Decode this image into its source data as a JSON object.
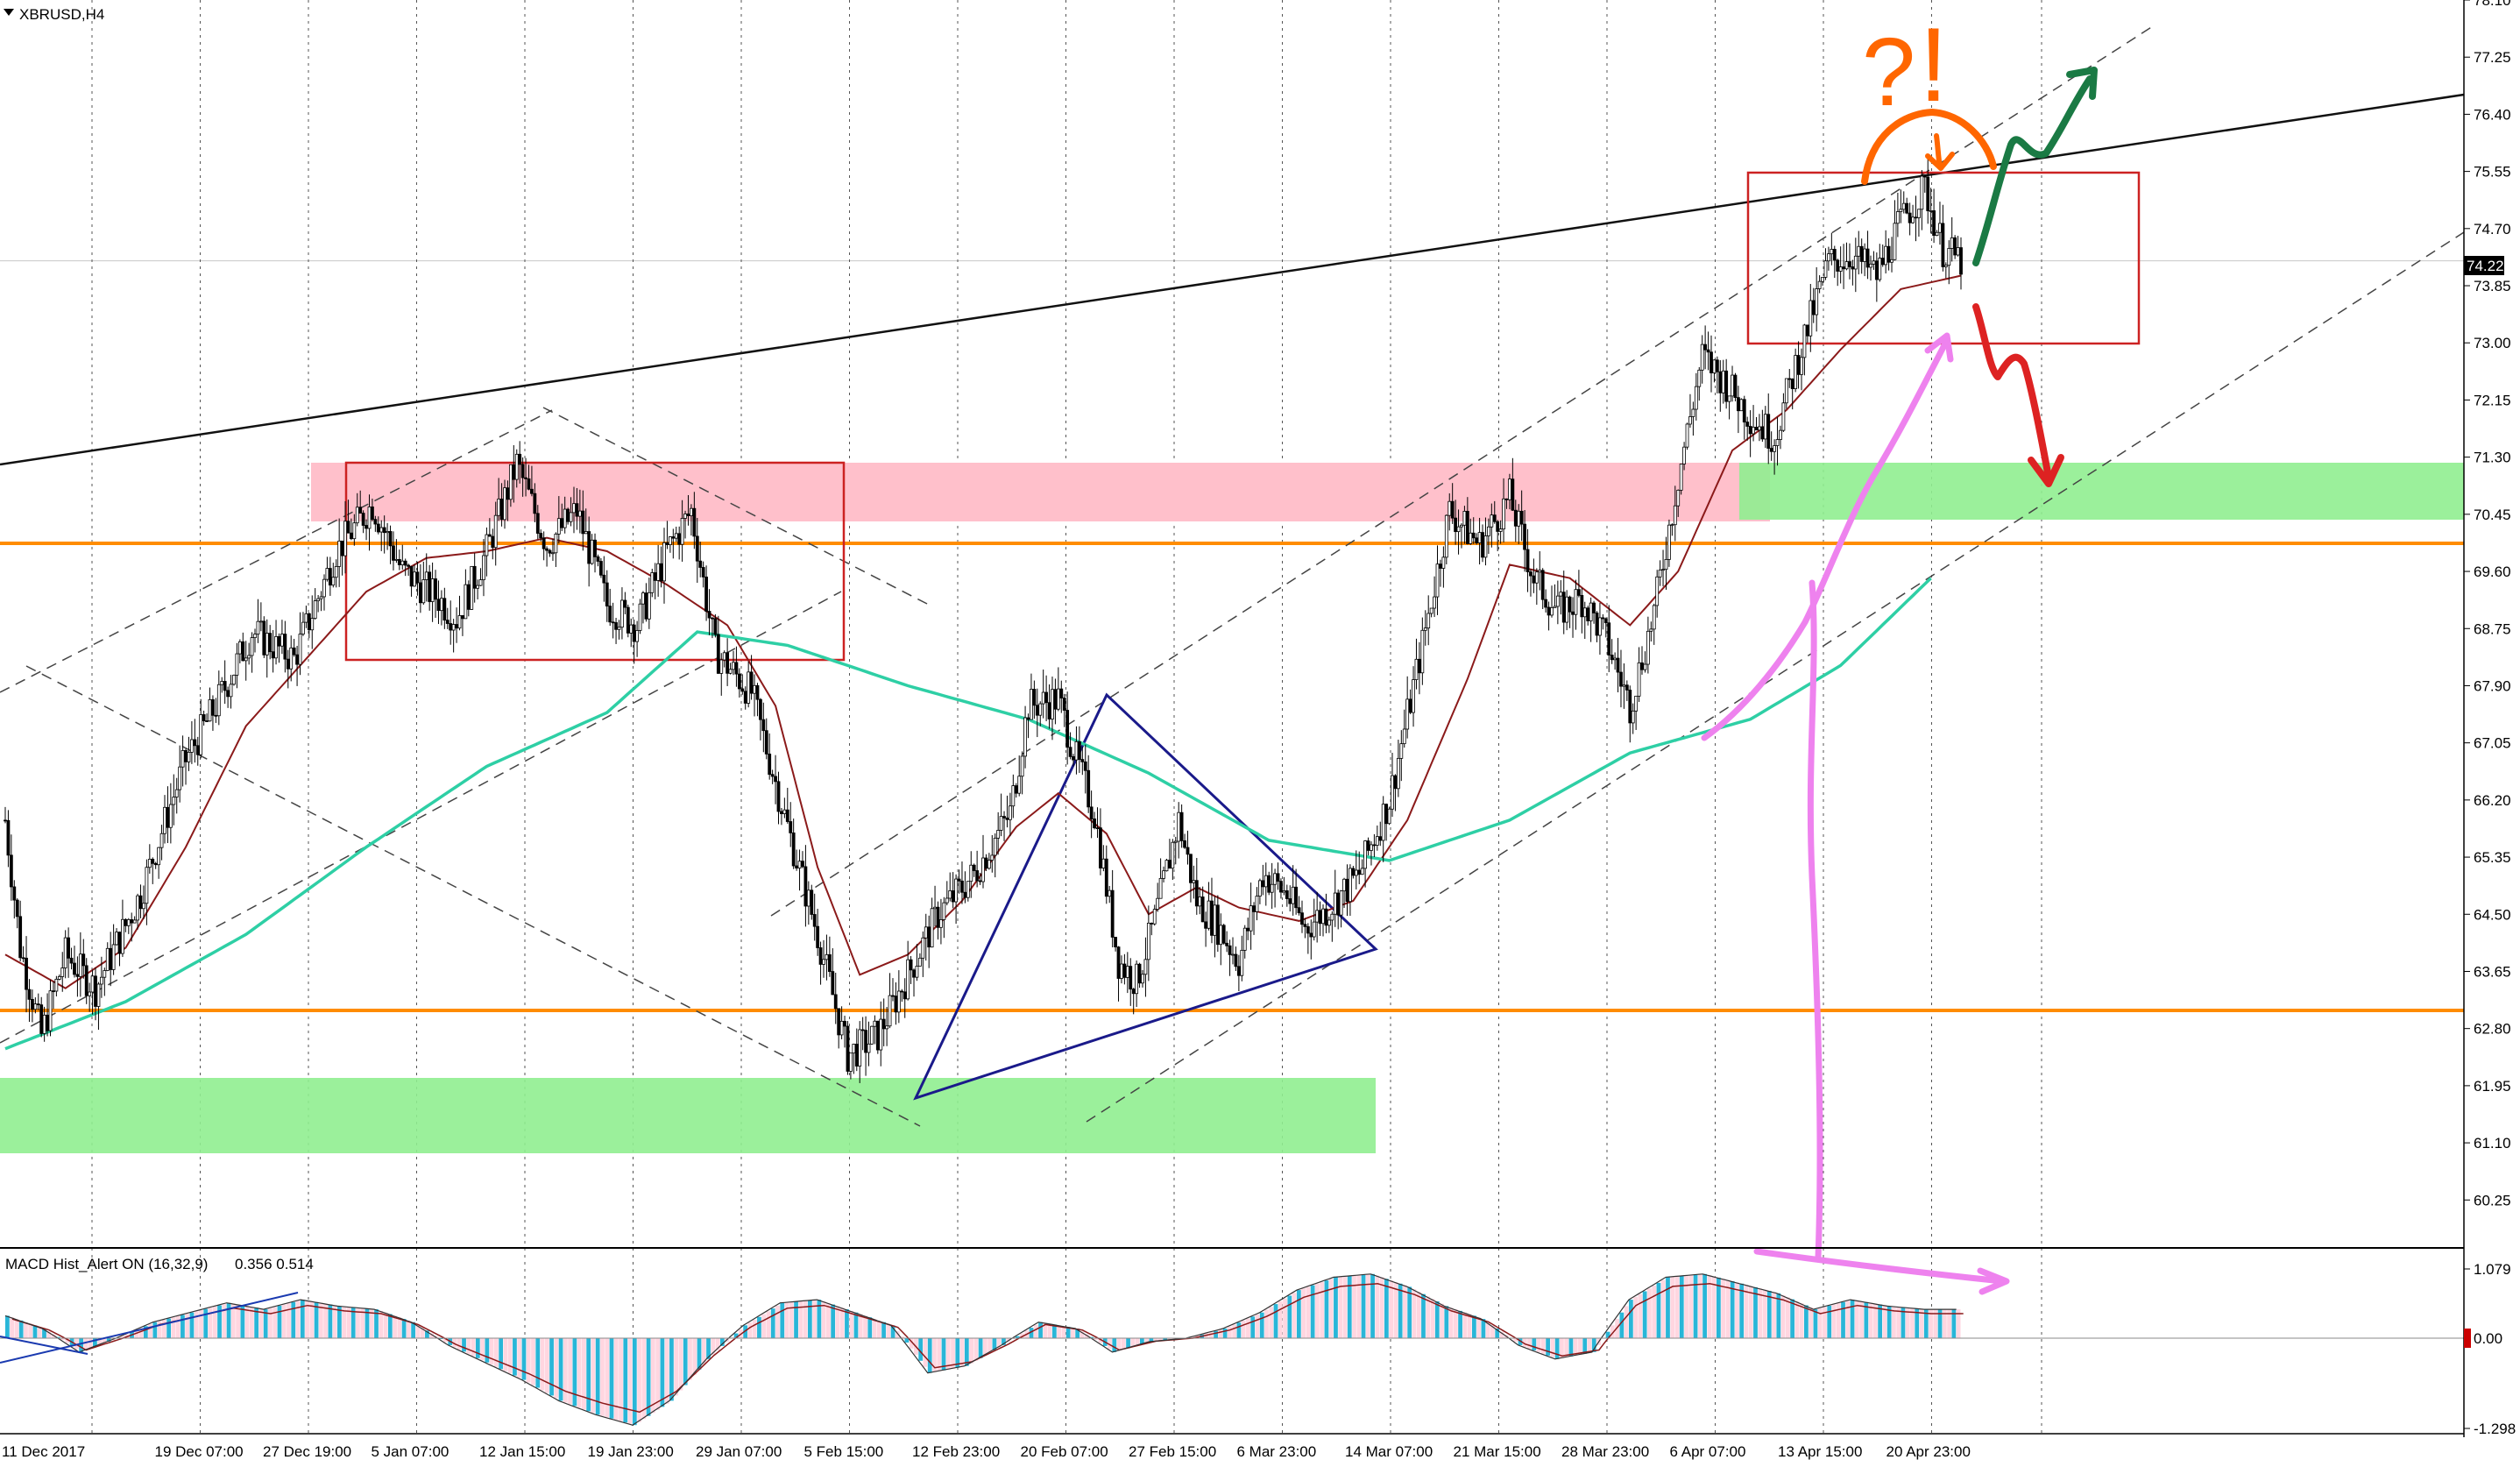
{
  "chart_data": [
    {
      "type": "candlestick",
      "symbol_label": "XBRUSD,H4",
      "current_price": "74.22",
      "ylim": [
        59.55,
        78.1
      ],
      "y_ticks": [
        "78.10",
        "77.25",
        "76.40",
        "75.55",
        "74.70",
        "73.85",
        "73.00",
        "72.15",
        "71.30",
        "70.45",
        "69.60",
        "68.75",
        "67.90",
        "67.05",
        "66.20",
        "65.35",
        "64.50",
        "63.65",
        "62.80",
        "61.95",
        "61.10",
        "60.25"
      ],
      "x_ticks": [
        "11 Dec 2017",
        "19 Dec 07:00",
        "27 Dec 19:00",
        "5 Jan 07:00",
        "12 Jan 15:00",
        "19 Jan 23:00",
        "29 Jan 07:00",
        "5 Feb 15:00",
        "12 Feb 23:00",
        "20 Feb 07:00",
        "27 Feb 15:00",
        "6 Mar 23:00",
        "14 Mar 07:00",
        "21 Mar 15:00",
        "28 Mar 23:00",
        "6 Apr 07:00",
        "13 Apr 15:00",
        "20 Apr 23:00"
      ],
      "price_path": [
        [
          0,
          65.9
        ],
        [
          5,
          64.0
        ],
        [
          12,
          62.7
        ],
        [
          20,
          63.9
        ],
        [
          30,
          63.4
        ],
        [
          45,
          64.8
        ],
        [
          60,
          66.8
        ],
        [
          70,
          67.6
        ],
        [
          82,
          68.7
        ],
        [
          96,
          68.3
        ],
        [
          110,
          69.9
        ],
        [
          122,
          70.6
        ],
        [
          132,
          69.6
        ],
        [
          144,
          69.2
        ],
        [
          150,
          68.9
        ],
        [
          160,
          69.9
        ],
        [
          170,
          71.2
        ],
        [
          180,
          70.0
        ],
        [
          190,
          70.5
        ],
        [
          200,
          69.1
        ],
        [
          210,
          68.8
        ],
        [
          220,
          69.9
        ],
        [
          228,
          70.5
        ],
        [
          236,
          68.4
        ],
        [
          248,
          67.8
        ],
        [
          260,
          65.8
        ],
        [
          270,
          64.2
        ],
        [
          280,
          62.4
        ],
        [
          290,
          62.7
        ],
        [
          300,
          63.6
        ],
        [
          310,
          64.5
        ],
        [
          322,
          65.1
        ],
        [
          334,
          66.0
        ],
        [
          340,
          67.6
        ],
        [
          350,
          67.7
        ],
        [
          356,
          66.8
        ],
        [
          362,
          66.0
        ],
        [
          370,
          63.8
        ],
        [
          376,
          63.5
        ],
        [
          382,
          64.4
        ],
        [
          390,
          65.9
        ],
        [
          396,
          64.7
        ],
        [
          402,
          64.4
        ],
        [
          410,
          63.8
        ],
        [
          418,
          65.1
        ],
        [
          426,
          64.8
        ],
        [
          432,
          64.3
        ],
        [
          440,
          64.6
        ],
        [
          450,
          65.1
        ],
        [
          460,
          66.2
        ],
        [
          470,
          68.3
        ],
        [
          480,
          70.5
        ],
        [
          490,
          70.0
        ],
        [
          500,
          70.7
        ],
        [
          508,
          69.5
        ],
        [
          516,
          69.0
        ],
        [
          524,
          69.2
        ],
        [
          532,
          68.6
        ],
        [
          540,
          67.6
        ],
        [
          548,
          69.0
        ],
        [
          556,
          71.0
        ],
        [
          564,
          72.8
        ],
        [
          572,
          72.4
        ],
        [
          580,
          71.9
        ],
        [
          588,
          71.6
        ],
        [
          596,
          72.8
        ],
        [
          606,
          74.2
        ],
        [
          614,
          74.3
        ],
        [
          622,
          74.0
        ],
        [
          630,
          74.8
        ],
        [
          638,
          75.3
        ],
        [
          644,
          74.4
        ],
        [
          650,
          74.22
        ]
      ],
      "series": [
        {
          "color": "#8b1a1a",
          "values": [
            [
              0,
              63.9
            ],
            [
              20,
              63.4
            ],
            [
              40,
              64.0
            ],
            [
              60,
              65.5
            ],
            [
              80,
              67.3
            ],
            [
              100,
              68.3
            ],
            [
              120,
              69.3
            ],
            [
              140,
              69.8
            ],
            [
              160,
              69.9
            ],
            [
              180,
              70.1
            ],
            [
              200,
              69.9
            ],
            [
              220,
              69.4
            ],
            [
              240,
              68.8
            ],
            [
              256,
              67.6
            ],
            [
              270,
              65.2
            ],
            [
              284,
              63.6
            ],
            [
              300,
              63.9
            ],
            [
              318,
              64.7
            ],
            [
              336,
              65.8
            ],
            [
              350,
              66.3
            ],
            [
              366,
              65.7
            ],
            [
              380,
              64.5
            ],
            [
              396,
              64.9
            ],
            [
              410,
              64.6
            ],
            [
              430,
              64.4
            ],
            [
              448,
              64.7
            ],
            [
              466,
              65.9
            ],
            [
              486,
              68.0
            ],
            [
              500,
              69.7
            ],
            [
              520,
              69.5
            ],
            [
              540,
              68.8
            ],
            [
              556,
              69.6
            ],
            [
              574,
              71.4
            ],
            [
              592,
              72.0
            ],
            [
              610,
              72.9
            ],
            [
              630,
              73.8
            ],
            [
              650,
              74.0
            ]
          ]
        },
        {
          "color": "#2ecfa5",
          "values": [
            [
              0,
              62.5
            ],
            [
              40,
              63.2
            ],
            [
              80,
              64.2
            ],
            [
              120,
              65.5
            ],
            [
              160,
              66.7
            ],
            [
              200,
              67.5
            ],
            [
              230,
              68.7
            ],
            [
              260,
              68.5
            ],
            [
              300,
              67.9
            ],
            [
              340,
              67.4
            ],
            [
              380,
              66.6
            ],
            [
              420,
              65.6
            ],
            [
              460,
              65.3
            ],
            [
              500,
              65.9
            ],
            [
              540,
              66.9
            ],
            [
              580,
              67.4
            ],
            [
              610,
              68.2
            ],
            [
              640,
              69.5
            ]
          ]
        }
      ]
    },
    {
      "type": "bar",
      "title": "MACD Hist_Alert ON (16,32,9)",
      "readout": "0.356 0.514",
      "ylim": [
        -1.298,
        1.079
      ],
      "y_ticks": [
        "1.079",
        "0.00",
        "-1.298"
      ],
      "zero_label": "0.00",
      "values": [
        0.35,
        0.15,
        -0.2,
        0.0,
        0.25,
        0.4,
        0.55,
        0.45,
        0.6,
        0.5,
        0.45,
        0.25,
        -0.1,
        -0.35,
        -0.6,
        -0.9,
        -1.1,
        -1.25,
        -0.9,
        -0.3,
        0.2,
        0.55,
        0.6,
        0.4,
        0.2,
        -0.5,
        -0.4,
        -0.1,
        0.25,
        0.15,
        -0.2,
        -0.05,
        0.0,
        0.15,
        0.4,
        0.75,
        0.95,
        1.0,
        0.8,
        0.5,
        0.3,
        -0.1,
        -0.3,
        -0.2,
        0.6,
        0.95,
        1.0,
        0.85,
        0.7,
        0.45,
        0.6,
        0.5,
        0.45
      ]
    }
  ],
  "annotation_marks": [
    "?",
    "!"
  ]
}
